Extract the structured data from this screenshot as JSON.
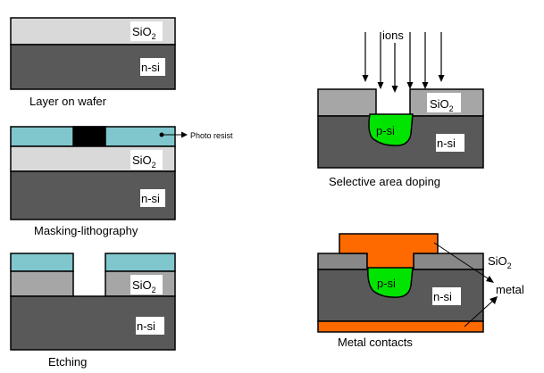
{
  "colors": {
    "silicon": "#595959",
    "oxide_light": "#d9d9d9",
    "oxide_mid": "#a6a6a6",
    "photoresist": "#7fc7cd",
    "mask": "#000000",
    "p_region": "#00e400",
    "metal": "#ff6a00",
    "outline": "#000000",
    "label_box": "#ffffff"
  },
  "panels": {
    "layer_on_wafer": {
      "caption": "Layer on wafer",
      "oxide": "SiO2",
      "substrate": "n-si"
    },
    "masking": {
      "caption": "Masking-lithography",
      "resist_label": "Photo resist",
      "oxide": "SiO2",
      "substrate": "n-si"
    },
    "etching": {
      "caption": "Etching",
      "oxide": "SiO2",
      "substrate": "n-si"
    },
    "doping": {
      "caption": "Selective area doping",
      "ions": "ions",
      "oxide": "SiO2",
      "p_region": "p-si",
      "substrate": "n-si"
    },
    "metal": {
      "caption": "Metal contacts",
      "oxide": "SiO2",
      "metal_label": "metal",
      "p_region": "p-si",
      "substrate": "n-si"
    }
  }
}
